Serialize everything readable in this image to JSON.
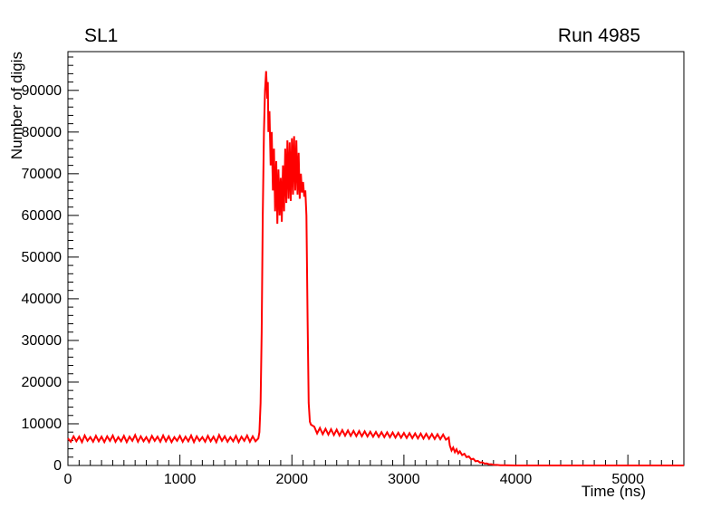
{
  "page": {
    "background": "#ffffff"
  },
  "chart_data": {
    "type": "line",
    "title_left": "SL1",
    "title_right": "Run 4985",
    "xlabel": "Time (ns)",
    "ylabel": "Number of digis",
    "xlim": [
      0,
      5500
    ],
    "ylim": [
      0,
      99300
    ],
    "x_major_ticks": [
      0,
      1000,
      2000,
      3000,
      4000,
      5000
    ],
    "x_minor_step": 100,
    "y_major_ticks": [
      0,
      10000,
      20000,
      30000,
      40000,
      50000,
      60000,
      70000,
      80000,
      90000
    ],
    "y_minor_step": 2000,
    "grid": false,
    "legend": "none",
    "line_color": "#ff0000",
    "line_width": 2,
    "x": [
      0,
      25,
      50,
      75,
      100,
      125,
      150,
      175,
      200,
      225,
      250,
      275,
      300,
      325,
      350,
      375,
      400,
      425,
      450,
      475,
      500,
      525,
      550,
      575,
      600,
      625,
      650,
      675,
      700,
      725,
      750,
      775,
      800,
      825,
      850,
      875,
      900,
      925,
      950,
      975,
      1000,
      1025,
      1050,
      1075,
      1100,
      1125,
      1150,
      1175,
      1200,
      1225,
      1250,
      1275,
      1300,
      1325,
      1350,
      1375,
      1400,
      1425,
      1450,
      1475,
      1500,
      1525,
      1550,
      1575,
      1600,
      1625,
      1650,
      1675,
      1700,
      1710,
      1720,
      1730,
      1740,
      1750,
      1760,
      1770,
      1780,
      1785,
      1790,
      1800,
      1810,
      1820,
      1830,
      1840,
      1850,
      1860,
      1870,
      1880,
      1890,
      1900,
      1910,
      1920,
      1930,
      1940,
      1950,
      1960,
      1970,
      1980,
      1990,
      2000,
      2010,
      2020,
      2030,
      2040,
      2050,
      2060,
      2070,
      2080,
      2090,
      2100,
      2110,
      2120,
      2130,
      2140,
      2150,
      2160,
      2170,
      2200,
      2225,
      2250,
      2275,
      2300,
      2325,
      2350,
      2375,
      2400,
      2425,
      2450,
      2475,
      2500,
      2525,
      2550,
      2575,
      2600,
      2625,
      2650,
      2675,
      2700,
      2725,
      2750,
      2775,
      2800,
      2825,
      2850,
      2875,
      2900,
      2925,
      2950,
      2975,
      3000,
      3025,
      3050,
      3075,
      3100,
      3125,
      3150,
      3175,
      3200,
      3225,
      3250,
      3275,
      3300,
      3325,
      3350,
      3375,
      3400,
      3410,
      3425,
      3440,
      3455,
      3470,
      3485,
      3500,
      3520,
      3540,
      3560,
      3580,
      3600,
      3620,
      3640,
      3660,
      3680,
      3700,
      3720,
      3740,
      3760,
      3780,
      3800,
      3830,
      3860,
      3900,
      3950,
      4000,
      4100,
      4200,
      4300,
      4600,
      5000,
      5500
    ],
    "y": [
      6500,
      5700,
      7000,
      5800,
      6900,
      5600,
      7200,
      5900,
      6800,
      5700,
      7100,
      5800,
      6900,
      5600,
      7000,
      5900,
      7200,
      5700,
      6800,
      5800,
      7100,
      5600,
      6900,
      5900,
      7300,
      5700,
      7000,
      5800,
      6800,
      5600,
      7100,
      5900,
      6900,
      5700,
      7200,
      5800,
      7000,
      5600,
      6800,
      5900,
      7100,
      5700,
      6900,
      5800,
      7200,
      5600,
      7000,
      5900,
      6800,
      5700,
      7100,
      5800,
      6900,
      5600,
      7300,
      5900,
      7000,
      5700,
      6800,
      5800,
      7100,
      5600,
      6900,
      5900,
      7200,
      5700,
      7000,
      5800,
      6500,
      8000,
      15000,
      32000,
      60000,
      80000,
      90000,
      94600,
      88000,
      92000,
      80000,
      85000,
      72000,
      80000,
      66000,
      76000,
      61000,
      73000,
      58000,
      71000,
      60000,
      69000,
      58500,
      72000,
      61000,
      76000,
      63000,
      78000,
      64000,
      77500,
      63500,
      78500,
      65000,
      79000,
      66000,
      78000,
      65000,
      75000,
      64000,
      70000,
      65500,
      68000,
      64500,
      66000,
      60000,
      35000,
      15000,
      10500,
      9800,
      9300,
      7700,
      9000,
      7500,
      8800,
      7400,
      8700,
      7300,
      8600,
      7200,
      8500,
      7150,
      8400,
      7100,
      8300,
      7050,
      8250,
      7000,
      8200,
      6950,
      8100,
      6900,
      8050,
      6850,
      8000,
      6800,
      7950,
      6750,
      7900,
      6700,
      7850,
      6650,
      7800,
      6600,
      7750,
      6550,
      7700,
      6500,
      7650,
      6450,
      7600,
      6400,
      7550,
      6350,
      7500,
      6300,
      7400,
      6200,
      6700,
      4800,
      3600,
      4300,
      3200,
      3900,
      2900,
      3400,
      2500,
      2800,
      2000,
      2200,
      1500,
      1600,
      1000,
      1100,
      700,
      750,
      450,
      480,
      280,
      300,
      180,
      120,
      70,
      40,
      20,
      10,
      5,
      2,
      0,
      0,
      0,
      0
    ]
  }
}
